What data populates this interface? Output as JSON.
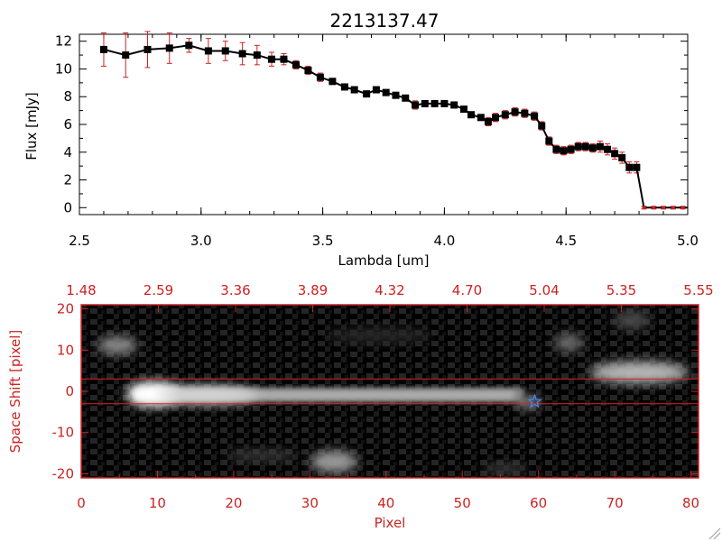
{
  "chart_data": [
    {
      "type": "line",
      "title": "2213137.47",
      "xlabel": "Lambda [um]",
      "ylabel": "Flux [mJy]",
      "xlim": [
        2.5,
        5.0
      ],
      "ylim": [
        -0.5,
        12.5
      ],
      "x_ticks": [
        "2.5",
        "3.0",
        "3.5",
        "4.0",
        "4.5",
        "5.0"
      ],
      "y_ticks": [
        "0",
        "2",
        "4",
        "6",
        "8",
        "10",
        "12"
      ],
      "colors": {
        "line": "#000000",
        "marker": "#000000",
        "errorbar": "#cc2222"
      },
      "x": [
        2.6,
        2.69,
        2.78,
        2.87,
        2.95,
        3.03,
        3.1,
        3.17,
        3.23,
        3.29,
        3.34,
        3.39,
        3.44,
        3.49,
        3.54,
        3.59,
        3.63,
        3.68,
        3.72,
        3.76,
        3.8,
        3.84,
        3.88,
        3.92,
        3.96,
        4.0,
        4.04,
        4.08,
        4.11,
        4.15,
        4.18,
        4.21,
        4.25,
        4.29,
        4.33,
        4.37,
        4.4,
        4.43,
        4.46,
        4.49,
        4.52,
        4.55,
        4.58,
        4.61,
        4.64,
        4.67,
        4.7,
        4.73,
        4.76,
        4.79,
        4.82,
        4.86,
        4.9,
        4.94,
        4.98
      ],
      "y": [
        11.4,
        11.0,
        11.4,
        11.5,
        11.7,
        11.3,
        11.3,
        11.1,
        11.0,
        10.7,
        10.7,
        10.3,
        9.9,
        9.4,
        9.1,
        8.7,
        8.5,
        8.2,
        8.5,
        8.3,
        8.1,
        7.9,
        7.4,
        7.5,
        7.5,
        7.5,
        7.4,
        7.1,
        6.7,
        6.5,
        6.2,
        6.5,
        6.7,
        6.9,
        6.8,
        6.6,
        5.9,
        4.8,
        4.2,
        4.1,
        4.2,
        4.4,
        4.4,
        4.3,
        4.4,
        4.2,
        3.9,
        3.6,
        2.9,
        2.9,
        0.0,
        0.0,
        0.0,
        0.0,
        0.0
      ],
      "yerr": [
        1.2,
        1.6,
        1.3,
        1.1,
        0.5,
        0.9,
        0.7,
        0.8,
        0.7,
        0.5,
        0.4,
        0.3,
        0.3,
        0.3,
        0.2,
        0.2,
        0.2,
        0.2,
        0.2,
        0.2,
        0.2,
        0.2,
        0.3,
        0.2,
        0.2,
        0.2,
        0.2,
        0.2,
        0.2,
        0.2,
        0.3,
        0.3,
        0.3,
        0.3,
        0.3,
        0.3,
        0.3,
        0.3,
        0.3,
        0.3,
        0.3,
        0.3,
        0.3,
        0.3,
        0.4,
        0.4,
        0.4,
        0.4,
        0.4,
        0.4,
        0.1,
        0.1,
        0.1,
        0.1,
        0.1
      ]
    },
    {
      "type": "heatmap",
      "xlabel": "Pixel",
      "ylabel": "Space Shift [pixel]",
      "xlim": [
        0,
        81
      ],
      "ylim": [
        -21,
        21
      ],
      "x_ticks": [
        "0",
        "10",
        "20",
        "30",
        "40",
        "50",
        "60",
        "70",
        "80"
      ],
      "y_ticks": [
        "-20",
        "-10",
        "0",
        "10",
        "20"
      ],
      "top_ticks": [
        "1.48",
        "2.59",
        "3.36",
        "3.89",
        "4.32",
        "4.70",
        "5.04",
        "5.35",
        "5.55"
      ],
      "extraction_lines_y": [
        3,
        -3
      ],
      "marker": {
        "shape": "star",
        "x": 59.5,
        "y": -2.5,
        "color": "#4488ee"
      },
      "colors": {
        "axes": "#cc2222",
        "guide_lines": "#dd2222",
        "background": "#000000"
      }
    }
  ]
}
